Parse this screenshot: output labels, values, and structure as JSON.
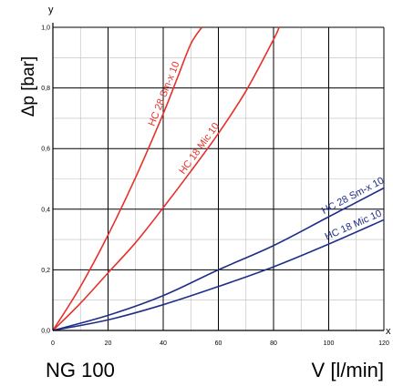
{
  "caption_left": "NG 100",
  "caption_right": "V [l/min]",
  "chart_data": {
    "type": "line",
    "ylabel": "Δp [bar]",
    "x_axis_letter": "x",
    "y_axis_letter": "y",
    "xlim": [
      0,
      120
    ],
    "ylim": [
      0,
      1.0
    ],
    "x_ticks": [
      0,
      20,
      40,
      60,
      80,
      100,
      120
    ],
    "y_ticks": [
      0.0,
      0.2,
      0.4,
      0.6,
      0.8,
      1.0
    ],
    "x_tick_labels": [
      "0",
      "20",
      "40",
      "60",
      "80",
      "100",
      "120"
    ],
    "y_tick_labels": [
      "0,0",
      "0,2",
      "0,4",
      "0,6",
      "0,8",
      "1,0"
    ],
    "x_minor_gridlines": [
      10,
      30,
      50,
      70,
      90,
      110
    ],
    "y_minor_gridlines": [
      0.1,
      0.3,
      0.5,
      0.7,
      0.9
    ],
    "grid": true,
    "series": [
      {
        "name": "HC 28 Sm-x 10",
        "color": "#e8302a",
        "x": [
          0,
          10,
          20,
          30,
          40,
          45,
          50,
          54
        ],
        "y": [
          0,
          0.145,
          0.315,
          0.505,
          0.715,
          0.83,
          0.945,
          1.0
        ]
      },
      {
        "name": "HC 18 Mic 10",
        "color": "#e8302a",
        "x": [
          0,
          10,
          20,
          30,
          40,
          50,
          60,
          70,
          80,
          82
        ],
        "y": [
          0,
          0.09,
          0.19,
          0.29,
          0.405,
          0.525,
          0.65,
          0.79,
          0.96,
          1.0
        ]
      },
      {
        "name": "HC 28 Sm-x 10",
        "color": "#1f2d8a",
        "x": [
          0,
          20,
          40,
          60,
          80,
          100,
          120
        ],
        "y": [
          0,
          0.05,
          0.115,
          0.2,
          0.28,
          0.375,
          0.47
        ]
      },
      {
        "name": "HC 18 Mic 10",
        "color": "#1f2d8a",
        "x": [
          0,
          20,
          40,
          60,
          80,
          100,
          120
        ],
        "y": [
          0,
          0.035,
          0.085,
          0.145,
          0.21,
          0.285,
          0.365
        ]
      }
    ]
  }
}
